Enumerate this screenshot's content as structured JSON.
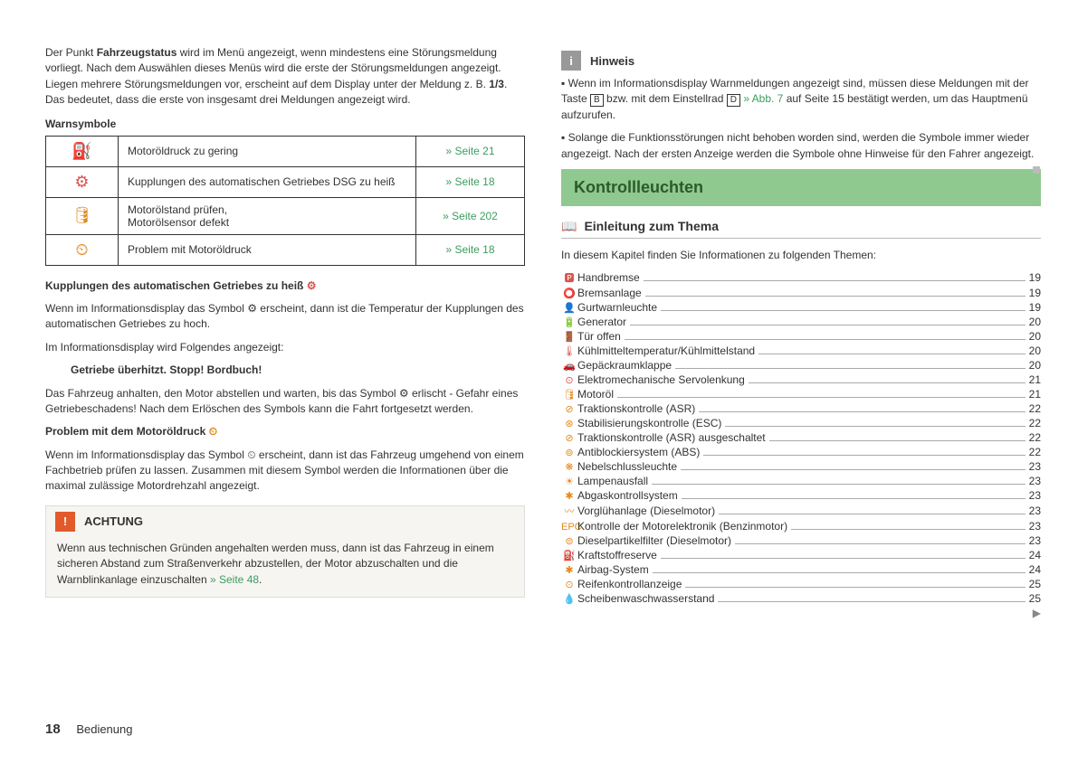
{
  "left": {
    "intro1_a": "Der Punkt ",
    "intro1_b": "Fahrzeugstatus",
    "intro1_c": " wird im Menü angezeigt, wenn mindestens eine Störungsmeldung vorliegt. Nach dem Auswählen dieses Menüs wird die erste der Störungsmeldungen angezeigt. Liegen mehrere Störungsmeldungen vor, erscheint auf dem Display unter der Meldung z. B. ",
    "intro1_d": "1/3",
    "intro1_e": ". Das bedeutet, dass die erste von insgesamt drei Meldungen angezeigt wird.",
    "table_title": "Warnsymbole",
    "rows": [
      {
        "icon": "⛽",
        "icon_class": "red",
        "text": "Motoröldruck zu gering",
        "link": "» Seite 21"
      },
      {
        "icon": "⚙",
        "icon_class": "red",
        "text": "Kupplungen des automatischen Getriebes DSG zu heiß",
        "link": "» Seite 18"
      },
      {
        "icon": "🛢",
        "icon_class": "orange",
        "text": "Motorölstand prüfen,\nMotorölsensor defekt",
        "link": "» Seite 202"
      },
      {
        "icon": "⏲",
        "icon_class": "orange",
        "text": "Problem mit Motoröldruck",
        "link": "» Seite 18"
      }
    ],
    "h1": "Kupplungen des automatischen Getriebes zu heiß ",
    "h1_icon": "⚙",
    "p1": "Wenn im Informationsdisplay das Symbol ⚙ erscheint, dann ist die Temperatur der Kupplungen des automatischen Getriebes zu hoch.",
    "p2": "Im Informationsdisplay wird Folgendes angezeigt:",
    "p3": "Getriebe überhitzt. Stopp! Bordbuch!",
    "p4": "Das Fahrzeug anhalten, den Motor abstellen und warten, bis das Symbol ⚙ erlischt - Gefahr eines Getriebeschadens! Nach dem Erlöschen des Symbols kann die Fahrt fortgesetzt werden.",
    "h2": "Problem mit dem Motoröldruck ",
    "h2_icon": "⏲",
    "p5": "Wenn im Informationsdisplay das Symbol ⏲ erscheint, dann ist das Fahrzeug umgehend von einem Fachbetrieb prüfen zu lassen. Zusammen mit diesem Symbol werden die Informationen über die maximal zulässige Motordrehzahl angezeigt.",
    "achtung_label": "ACHTUNG",
    "achtung_body_a": "Wenn aus technischen Gründen angehalten werden muss, dann ist das Fahrzeug in einem sicheren Abstand zum Straßenverkehr abzustellen, der Motor abzuschalten und die Warnblinkanlage einzuschalten ",
    "achtung_body_b": "» Seite 48"
  },
  "right": {
    "hinweis_label": "Hinweis",
    "n1_a": "▪ Wenn im Informationsdisplay Warnmeldungen angezeigt sind, müssen diese Meldungen mit der Taste ",
    "n1_key1": "B",
    "n1_b": " bzw. mit dem Einstellrad ",
    "n1_key2": "D",
    "n1_c": " » Abb. 7",
    "n1_d": " auf Seite 15 bestätigt werden, um das Hauptmenü aufzurufen.",
    "n2": "▪ Solange die Funktionsstörungen nicht behoben worden sind, werden die Symbole immer wieder angezeigt. Nach der ersten Anzeige werden die Symbole ohne Hinweise für den Fahrer angezeigt.",
    "headline": "Kontrollleuchten",
    "sub": "Einleitung zum Thema",
    "intro": "In diesem Kapitel finden Sie Informationen zu folgenden Themen:",
    "toc": [
      {
        "ic": "🅿",
        "cl": "red",
        "t": "Handbremse",
        "p": "19"
      },
      {
        "ic": "⭕",
        "cl": "red",
        "t": "Bremsanlage",
        "p": "19"
      },
      {
        "ic": "👤",
        "cl": "red",
        "t": "Gurtwarnleuchte",
        "p": "19"
      },
      {
        "ic": "🔋",
        "cl": "red",
        "t": "Generator",
        "p": "20"
      },
      {
        "ic": "🚪",
        "cl": "red",
        "t": "Tür offen",
        "p": "20"
      },
      {
        "ic": "🌡",
        "cl": "red",
        "t": "Kühlmitteltemperatur/Kühlmittelstand",
        "p": "20"
      },
      {
        "ic": "🚗",
        "cl": "orange",
        "t": "Gepäckraumklappe",
        "p": "20"
      },
      {
        "ic": "⊙",
        "cl": "red",
        "t": "Elektromechanische Servolenkung",
        "p": "21"
      },
      {
        "ic": "🛢",
        "cl": "orange",
        "t": "Motoröl",
        "p": "21"
      },
      {
        "ic": "⊘",
        "cl": "orange",
        "t": "Traktionskontrolle (ASR)",
        "p": "22"
      },
      {
        "ic": "⊛",
        "cl": "orange",
        "t": "Stabilisierungskontrolle (ESC)",
        "p": "22"
      },
      {
        "ic": "⊘",
        "cl": "orange",
        "t": "Traktionskontrolle (ASR) ausgeschaltet",
        "p": "22"
      },
      {
        "ic": "⊚",
        "cl": "orange",
        "t": "Antiblockiersystem (ABS)",
        "p": "22"
      },
      {
        "ic": "❋",
        "cl": "orange",
        "t": "Nebelschlussleuchte",
        "p": "23"
      },
      {
        "ic": "☀",
        "cl": "orange",
        "t": "Lampenausfall",
        "p": "23"
      },
      {
        "ic": "✱",
        "cl": "orange",
        "t": "Abgaskontrollsystem",
        "p": "23"
      },
      {
        "ic": "〰",
        "cl": "orange",
        "t": "Vorglühanlage (Dieselmotor)",
        "p": "23"
      },
      {
        "ic": "EPC",
        "cl": "orange",
        "t": "Kontrolle der Motorelektronik (Benzinmotor)",
        "p": "23"
      },
      {
        "ic": "⊜",
        "cl": "orange",
        "t": "Dieselpartikelfilter (Dieselmotor)",
        "p": "23"
      },
      {
        "ic": "⛽",
        "cl": "orange",
        "t": "Kraftstoffreserve",
        "p": "24"
      },
      {
        "ic": "✱",
        "cl": "orange",
        "t": "Airbag-System",
        "p": "24"
      },
      {
        "ic": "⊙",
        "cl": "orange",
        "t": "Reifenkontrollanzeige",
        "p": "25"
      },
      {
        "ic": "💧",
        "cl": "orange",
        "t": "Scheibenwaschwasserstand",
        "p": "25"
      }
    ]
  },
  "footer": {
    "page": "18",
    "section": "Bedienung"
  }
}
